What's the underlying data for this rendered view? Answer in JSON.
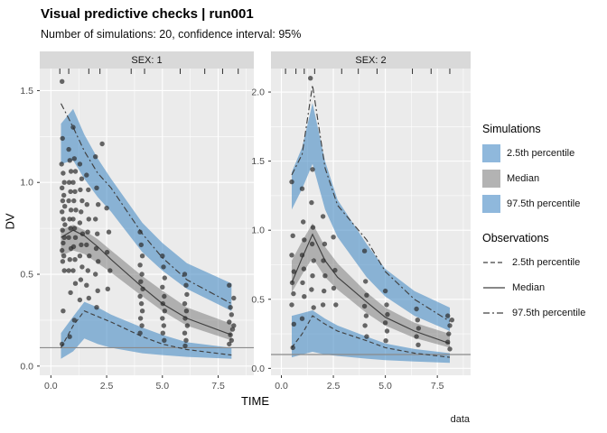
{
  "chart_data": {
    "type": "vpc_faceted_ribbon_scatter",
    "title": "Visual predictive checks | run001",
    "subtitle": "Number of simulations: 20, confidence interval: 95%",
    "xlabel": "TIME",
    "ylabel": "DV",
    "caption": "data",
    "legend": {
      "simulations_title": "Simulations",
      "sim_items": [
        {
          "label": "2.5th percentile",
          "color": "#8FB8DC"
        },
        {
          "label": "Median",
          "color": "#B3B3B3"
        },
        {
          "label": "97.5th percentile",
          "color": "#8FB8DC"
        }
      ],
      "observations_title": "Observations",
      "obs_items": [
        {
          "label": "2.5th percentile",
          "key": "p2_5"
        },
        {
          "label": "Median",
          "key": "median"
        },
        {
          "label": "97.5th percentile",
          "key": "p97_5"
        }
      ]
    },
    "style": {
      "sim_fill": "#4E8FC7",
      "sim_fill_opacity": 0.62,
      "median_fill": "#737373",
      "median_fill_opacity": 0.5,
      "obs_line_color": "#404040",
      "obs_dashes": {
        "p2_5": "5,3",
        "median": "",
        "p97_5": "7,3,2,3"
      },
      "point_color": "#2B2B2B",
      "point_opacity": 0.7,
      "panel_bg": "#EBEBEB",
      "grid_color": "#FFFFFF",
      "strip_bg": "#D9D9D9",
      "refline_color": "#8A8A8A",
      "tick_label_color": "#4D4D4D"
    },
    "facets": [
      {
        "strip_label": "SEX: 1",
        "xlim": [
          -0.5,
          9.1
        ],
        "ylim": [
          -0.05,
          1.62
        ],
        "xticks": [
          0,
          2.5,
          5,
          7.5
        ],
        "yticks": [
          0,
          0.5,
          1,
          1.5
        ],
        "refline_y": 0.1,
        "bins_x": [
          0.45,
          1.0,
          1.5,
          2.1,
          2.7,
          4.1,
          5.0,
          6.1,
          8.1
        ],
        "sim_ribbons": {
          "p97_5": {
            "hi": [
              1.32,
              1.4,
              1.26,
              1.13,
              1.02,
              0.78,
              0.67,
              0.56,
              0.45
            ],
            "lo": [
              1.1,
              1.12,
              1.02,
              0.92,
              0.84,
              0.62,
              0.52,
              0.42,
              0.3
            ]
          },
          "median": {
            "hi": [
              0.74,
              0.77,
              0.74,
              0.69,
              0.63,
              0.49,
              0.41,
              0.32,
              0.23
            ],
            "lo": [
              0.6,
              0.63,
              0.61,
              0.56,
              0.51,
              0.38,
              0.3,
              0.22,
              0.14
            ]
          },
          "p2_5": {
            "hi": [
              0.18,
              0.27,
              0.35,
              0.32,
              0.28,
              0.21,
              0.17,
              0.13,
              0.1
            ],
            "lo": [
              0.04,
              0.08,
              0.15,
              0.12,
              0.1,
              0.07,
              0.06,
              0.05,
              0.04
            ]
          }
        },
        "obs_lines": {
          "p97_5": [
            1.43,
            1.3,
            1.17,
            1.05,
            0.97,
            0.72,
            0.59,
            0.47,
            0.34
          ],
          "median": [
            0.7,
            0.74,
            0.71,
            0.65,
            0.58,
            0.43,
            0.34,
            0.26,
            0.17
          ],
          "p2_5": [
            0.1,
            0.22,
            0.3,
            0.27,
            0.24,
            0.16,
            0.12,
            0.09,
            0.06
          ]
        },
        "rug_x": [
          0.4,
          0.8,
          1.7,
          2.2,
          3.6,
          4.2,
          5.8,
          6.9,
          7.7,
          8.4
        ],
        "points": [
          [
            0.5,
            1.55
          ],
          [
            0.52,
            1.24
          ],
          [
            0.48,
            1.1
          ],
          [
            0.55,
            1.05
          ],
          [
            0.6,
            1.0
          ],
          [
            0.5,
            0.97
          ],
          [
            0.58,
            0.93
          ],
          [
            0.53,
            0.9
          ],
          [
            0.62,
            0.87
          ],
          [
            0.5,
            0.84
          ],
          [
            0.56,
            0.8
          ],
          [
            0.63,
            0.77
          ],
          [
            0.52,
            0.74
          ],
          [
            0.6,
            0.7
          ],
          [
            0.55,
            0.67
          ],
          [
            0.5,
            0.63
          ],
          [
            0.58,
            0.6
          ],
          [
            0.53,
            0.57
          ],
          [
            0.6,
            0.52
          ],
          [
            0.55,
            0.3
          ],
          [
            0.5,
            0.12
          ],
          [
            0.8,
            1.18
          ],
          [
            0.85,
            1.12
          ],
          [
            0.9,
            1.06
          ],
          [
            0.82,
            1.0
          ],
          [
            0.88,
            0.95
          ],
          [
            0.8,
            0.9
          ],
          [
            0.9,
            0.85
          ],
          [
            0.84,
            0.8
          ],
          [
            0.88,
            0.75
          ],
          [
            0.8,
            0.7
          ],
          [
            0.9,
            0.64
          ],
          [
            0.85,
            0.58
          ],
          [
            0.8,
            0.52
          ],
          [
            0.88,
            0.4
          ],
          [
            0.84,
            0.16
          ],
          [
            1.0,
            1.3
          ],
          [
            1.05,
            1.13
          ],
          [
            1.1,
            1.06
          ],
          [
            1.0,
            1.0
          ],
          [
            1.08,
            0.95
          ],
          [
            1.03,
            0.9
          ],
          [
            1.12,
            0.85
          ],
          [
            1.0,
            0.8
          ],
          [
            1.06,
            0.75
          ],
          [
            1.1,
            0.7
          ],
          [
            1.02,
            0.65
          ],
          [
            1.08,
            0.58
          ],
          [
            1.0,
            0.52
          ],
          [
            1.1,
            0.45
          ],
          [
            1.05,
            0.25
          ],
          [
            1.3,
            1.1
          ],
          [
            1.38,
            1.02
          ],
          [
            1.32,
            0.96
          ],
          [
            1.4,
            0.9
          ],
          [
            1.35,
            0.84
          ],
          [
            1.3,
            0.78
          ],
          [
            1.42,
            0.72
          ],
          [
            1.36,
            0.66
          ],
          [
            1.3,
            0.6
          ],
          [
            1.4,
            0.54
          ],
          [
            1.34,
            0.47
          ],
          [
            1.3,
            0.36
          ],
          [
            1.6,
            1.04
          ],
          [
            1.68,
            0.96
          ],
          [
            1.62,
            0.88
          ],
          [
            1.7,
            0.8
          ],
          [
            1.65,
            0.73
          ],
          [
            1.6,
            0.66
          ],
          [
            1.72,
            0.6
          ],
          [
            1.66,
            0.52
          ],
          [
            1.6,
            0.44
          ],
          [
            1.7,
            0.37
          ],
          [
            2.0,
            1.14
          ],
          [
            2.3,
            1.21
          ],
          [
            2.05,
            0.97
          ],
          [
            2.12,
            0.88
          ],
          [
            2.0,
            0.8
          ],
          [
            2.08,
            0.72
          ],
          [
            2.03,
            0.64
          ],
          [
            2.12,
            0.57
          ],
          [
            2.0,
            0.5
          ],
          [
            2.1,
            0.41
          ],
          [
            2.05,
            0.32
          ],
          [
            2.5,
            0.86
          ],
          [
            2.6,
            0.73
          ],
          [
            2.52,
            0.62
          ],
          [
            2.65,
            0.52
          ],
          [
            2.55,
            0.42
          ],
          [
            4.0,
            0.73
          ],
          [
            4.05,
            0.66
          ],
          [
            4.1,
            0.6
          ],
          [
            4.0,
            0.55
          ],
          [
            4.08,
            0.5
          ],
          [
            4.03,
            0.46
          ],
          [
            4.12,
            0.42
          ],
          [
            4.0,
            0.38
          ],
          [
            4.06,
            0.34
          ],
          [
            4.1,
            0.3
          ],
          [
            4.02,
            0.26
          ],
          [
            4.08,
            0.22
          ],
          [
            4.0,
            0.18
          ],
          [
            5.0,
            0.6
          ],
          [
            5.05,
            0.54
          ],
          [
            5.1,
            0.48
          ],
          [
            5.0,
            0.43
          ],
          [
            5.08,
            0.38
          ],
          [
            5.02,
            0.34
          ],
          [
            5.1,
            0.3
          ],
          [
            5.0,
            0.26
          ],
          [
            5.06,
            0.22
          ],
          [
            5.02,
            0.18
          ],
          [
            5.08,
            0.14
          ],
          [
            6.0,
            0.5
          ],
          [
            6.06,
            0.44
          ],
          [
            6.1,
            0.39
          ],
          [
            6.0,
            0.34
          ],
          [
            6.08,
            0.3
          ],
          [
            6.02,
            0.26
          ],
          [
            6.12,
            0.22
          ],
          [
            6.0,
            0.18
          ],
          [
            6.06,
            0.14
          ],
          [
            6.02,
            0.11
          ],
          [
            8.0,
            0.44
          ],
          [
            8.2,
            0.37
          ],
          [
            8.05,
            0.32
          ],
          [
            8.1,
            0.28
          ],
          [
            8.0,
            0.24
          ],
          [
            8.15,
            0.2
          ],
          [
            8.05,
            0.17
          ],
          [
            8.1,
            0.14
          ],
          [
            8.0,
            0.12
          ],
          [
            8.2,
            0.22
          ]
        ]
      },
      {
        "strip_label": "SEX: 2",
        "xlim": [
          -0.5,
          9.1
        ],
        "ylim": [
          -0.05,
          2.17
        ],
        "xticks": [
          0,
          2.5,
          5,
          7.5
        ],
        "yticks": [
          0,
          0.5,
          1,
          1.5,
          2
        ],
        "refline_y": 0.1,
        "bins_x": [
          0.5,
          1.0,
          1.5,
          2.1,
          2.7,
          4.1,
          5.0,
          6.4,
          8.1
        ],
        "sim_ribbons": {
          "p97_5": {
            "hi": [
              1.42,
              1.6,
              1.92,
              1.5,
              1.22,
              0.9,
              0.72,
              0.56,
              0.44
            ],
            "lo": [
              1.15,
              1.3,
              1.48,
              1.15,
              0.95,
              0.66,
              0.52,
              0.38,
              0.27
            ]
          },
          "median": {
            "hi": [
              0.78,
              0.92,
              1.05,
              0.88,
              0.76,
              0.55,
              0.44,
              0.33,
              0.25
            ],
            "lo": [
              0.55,
              0.68,
              0.8,
              0.66,
              0.57,
              0.4,
              0.31,
              0.22,
              0.15
            ]
          },
          "p2_5": {
            "hi": [
              0.38,
              0.4,
              0.42,
              0.36,
              0.31,
              0.23,
              0.18,
              0.14,
              0.11
            ],
            "lo": [
              0.08,
              0.1,
              0.12,
              0.1,
              0.09,
              0.07,
              0.06,
              0.05,
              0.04
            ]
          }
        },
        "obs_lines": {
          "p97_5": [
            1.4,
            1.55,
            2.05,
            1.45,
            1.18,
            0.93,
            0.7,
            0.5,
            0.34
          ],
          "median": [
            0.62,
            0.8,
            0.97,
            0.78,
            0.66,
            0.48,
            0.37,
            0.27,
            0.18
          ],
          "p2_5": [
            0.15,
            0.25,
            0.38,
            0.32,
            0.27,
            0.2,
            0.15,
            0.11,
            0.08
          ]
        },
        "rug_x": [
          0.2,
          0.7,
          1.1,
          1.6,
          2.9,
          3.7,
          4.6,
          6.3,
          7.2,
          8.1
        ],
        "points": [
          [
            0.5,
            1.35
          ],
          [
            0.55,
            0.96
          ],
          [
            0.5,
            0.82
          ],
          [
            0.6,
            0.7
          ],
          [
            0.52,
            0.62
          ],
          [
            0.58,
            0.54
          ],
          [
            0.5,
            0.46
          ],
          [
            0.6,
            0.32
          ],
          [
            0.55,
            0.15
          ],
          [
            1.0,
            1.3
          ],
          [
            1.05,
            1.06
          ],
          [
            1.1,
            0.93
          ],
          [
            1.0,
            0.82
          ],
          [
            1.08,
            0.72
          ],
          [
            1.02,
            0.62
          ],
          [
            1.1,
            0.52
          ],
          [
            1.0,
            0.36
          ],
          [
            1.4,
            2.1
          ],
          [
            1.5,
            1.44
          ],
          [
            1.45,
            1.2
          ],
          [
            1.52,
            1.02
          ],
          [
            1.48,
            0.9
          ],
          [
            1.55,
            0.78
          ],
          [
            1.5,
            0.67
          ],
          [
            1.45,
            0.57
          ],
          [
            1.55,
            0.44
          ],
          [
            2.0,
            1.1
          ],
          [
            2.08,
            0.9
          ],
          [
            2.02,
            0.78
          ],
          [
            2.1,
            0.67
          ],
          [
            2.05,
            0.56
          ],
          [
            2.0,
            0.46
          ],
          [
            2.5,
            0.95
          ],
          [
            2.58,
            0.71
          ],
          [
            2.52,
            0.58
          ],
          [
            2.62,
            0.46
          ],
          [
            4.0,
            0.85
          ],
          [
            4.05,
            0.63
          ],
          [
            4.1,
            0.53
          ],
          [
            4.0,
            0.45
          ],
          [
            4.08,
            0.38
          ],
          [
            4.02,
            0.31
          ],
          [
            4.1,
            0.23
          ],
          [
            5.0,
            0.56
          ],
          [
            5.06,
            0.46
          ],
          [
            5.1,
            0.39
          ],
          [
            5.0,
            0.33
          ],
          [
            5.08,
            0.27
          ],
          [
            5.02,
            0.2
          ],
          [
            6.5,
            0.43
          ],
          [
            6.55,
            0.35
          ],
          [
            6.6,
            0.29
          ],
          [
            6.5,
            0.23
          ],
          [
            6.58,
            0.17
          ],
          [
            8.0,
            0.38
          ],
          [
            8.1,
            0.31
          ],
          [
            8.05,
            0.25
          ],
          [
            8.2,
            0.35
          ],
          [
            8.0,
            0.19
          ],
          [
            8.1,
            0.14
          ]
        ]
      }
    ]
  }
}
